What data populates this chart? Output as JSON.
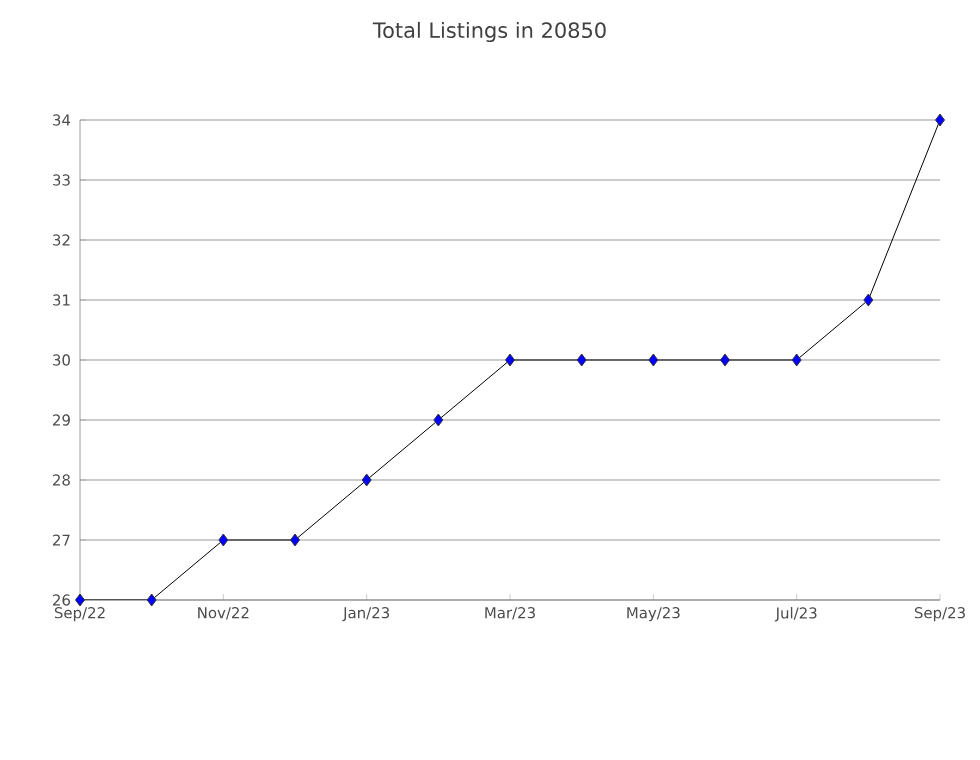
{
  "chart_data": {
    "type": "line",
    "title": "Total Listings in 20850",
    "x": [
      "2022-09",
      "2022-10",
      "2022-11",
      "2022-12",
      "2023-01",
      "2023-02",
      "2023-03",
      "2023-04",
      "2023-05",
      "2023-06",
      "2023-07",
      "2023-08",
      "2023-09"
    ],
    "series": [
      {
        "color": "#0000ff",
        "values": [
          26,
          26,
          27,
          27,
          28,
          29,
          30,
          30,
          30,
          30,
          30,
          31,
          34
        ]
      }
    ],
    "xlim": [
      "2022-09",
      "2023-09"
    ],
    "xticks": [
      {
        "value": "2022-09",
        "label": "Sep/22"
      },
      {
        "value": "2022-11",
        "label": "Nov/22"
      },
      {
        "value": "2023-01",
        "label": "Jan/23"
      },
      {
        "value": "2023-03",
        "label": "Mar/23"
      },
      {
        "value": "2023-05",
        "label": "May/23"
      },
      {
        "value": "2023-07",
        "label": "Jul/23"
      },
      {
        "value": "2023-09",
        "label": "Sep/23"
      }
    ],
    "ylim": [
      26,
      34
    ],
    "yticks": [
      26,
      27,
      28,
      29,
      30,
      31,
      32,
      33,
      34
    ],
    "grid": "y",
    "marker": "diamond",
    "line_style": "solid"
  }
}
